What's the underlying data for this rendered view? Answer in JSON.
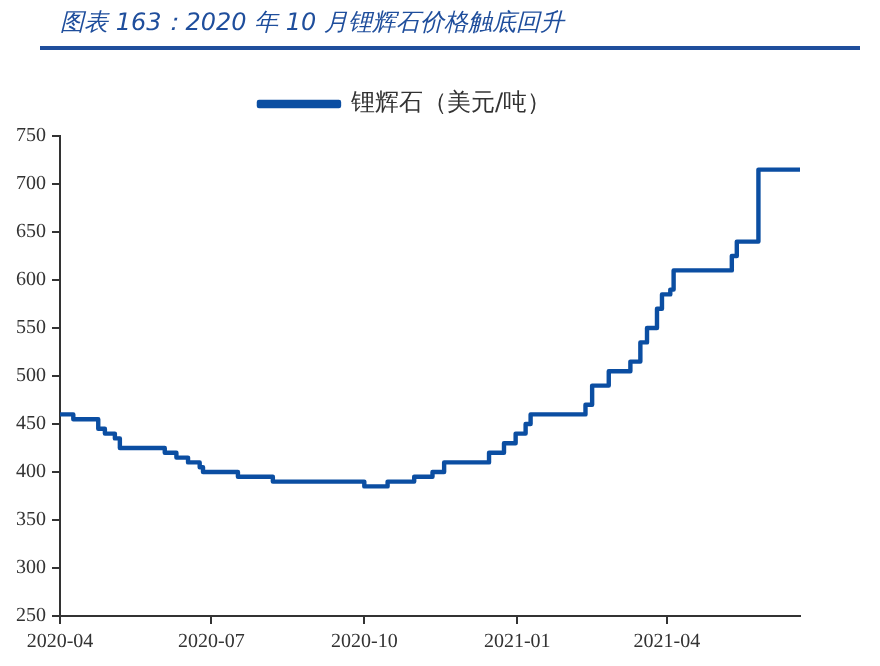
{
  "chart_data": {
    "type": "step",
    "title": "图表 163：2020 年 10 月锂辉石价格触底回升",
    "x": [
      "2020-04-01",
      "2020-04-09",
      "2020-04-24",
      "2020-04-28",
      "2020-05-04",
      "2020-05-07",
      "2020-06-03",
      "2020-06-10",
      "2020-06-17",
      "2020-06-24",
      "2020-06-26",
      "2020-07-17",
      "2020-08-07",
      "2020-10-01",
      "2020-10-15",
      "2020-10-31",
      "2020-11-11",
      "2020-11-18",
      "2020-12-15",
      "2020-12-24",
      "2020-12-31",
      "2021-01-06",
      "2021-01-09",
      "2021-02-11",
      "2021-02-15",
      "2021-02-25",
      "2021-03-10",
      "2021-03-16",
      "2021-03-20",
      "2021-03-26",
      "2021-03-29",
      "2021-04-03",
      "2021-04-05",
      "2021-05-10",
      "2021-05-13",
      "2021-05-26",
      "2021-06-20"
    ],
    "series": [
      {
        "name": "锂辉石（美元/吨）",
        "color": "#0b4ea2",
        "values": [
          460,
          455,
          445,
          440,
          435,
          425,
          420,
          415,
          410,
          405,
          400,
          395,
          390,
          385,
          390,
          395,
          400,
          410,
          420,
          430,
          440,
          450,
          460,
          470,
          490,
          505,
          515,
          535,
          550,
          570,
          585,
          590,
          610,
          625,
          640,
          715,
          715
        ]
      }
    ],
    "xlim": [
      "2020-04-01",
      "2021-06-20"
    ],
    "xticks": [
      {
        "value": "2020-04",
        "label": "2020-04"
      },
      {
        "value": "2020-07",
        "label": "2020-07"
      },
      {
        "value": "2020-10",
        "label": "2020-10"
      },
      {
        "value": "2021-01",
        "label": "2021-01"
      },
      {
        "value": "2021-04",
        "label": "2021-04"
      }
    ],
    "ylim": [
      250,
      750
    ],
    "yticks": [
      250,
      300,
      350,
      400,
      450,
      500,
      550,
      600,
      650,
      700,
      750
    ],
    "grid": false,
    "legend": "top",
    "marker": "none",
    "line_style": "solid"
  }
}
